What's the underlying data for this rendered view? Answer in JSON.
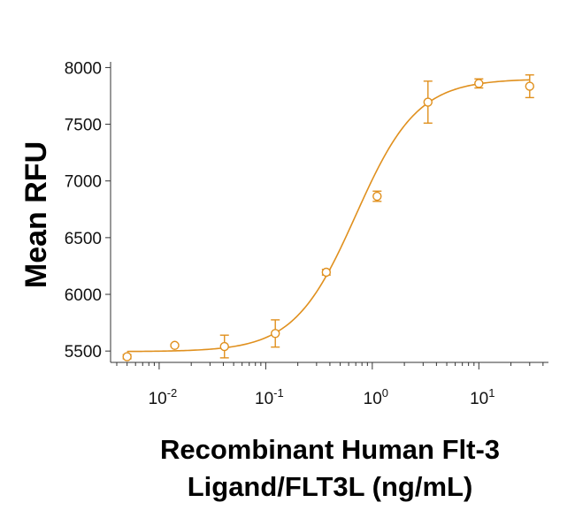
{
  "chart_data": {
    "type": "scatter",
    "xlabel_lines": [
      "Recombinant Human Flt-3",
      "Ligand/FLT3L (ng/mL)"
    ],
    "ylabel": "Mean RFU",
    "x_scale": "log",
    "xlim": [
      0.0035,
      45
    ],
    "ylim": [
      5400,
      8050
    ],
    "y_ticks": [
      5500,
      6000,
      6500,
      7000,
      7500,
      8000
    ],
    "y_tick_labels": [
      "5500",
      "6000",
      "6500",
      "7000",
      "7500",
      "8000"
    ],
    "x_major_ticks": [
      0.01,
      0.1,
      1,
      10
    ],
    "x_tick_labels": [
      {
        "base": "10",
        "exp": "-2"
      },
      {
        "base": "10",
        "exp": "-1"
      },
      {
        "base": "10",
        "exp": "0"
      },
      {
        "base": "10",
        "exp": "1"
      }
    ],
    "grid": false,
    "color": "#E0901E",
    "fit": {
      "model": "4PL",
      "bottom": 5495,
      "top": 7900,
      "ec50": 0.7,
      "hill": 1.5
    },
    "series": [
      {
        "x": [
          0.005,
          0.014,
          0.041,
          0.123,
          0.37,
          1.11,
          3.33,
          10,
          30
        ],
        "y": [
          5450,
          5550,
          5540,
          5655,
          6195,
          6865,
          7695,
          7860,
          7835
        ],
        "err": [
          18,
          10,
          100,
          120,
          25,
          45,
          185,
          40,
          100
        ]
      }
    ]
  }
}
